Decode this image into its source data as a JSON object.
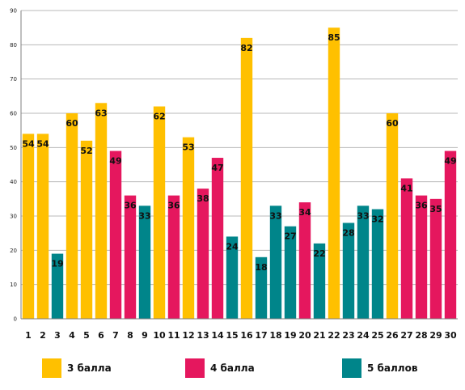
{
  "chart_data": {
    "type": "bar",
    "categories": [
      "1",
      "2",
      "3",
      "4",
      "5",
      "6",
      "7",
      "8",
      "9",
      "10",
      "11",
      "12",
      "13",
      "14",
      "15",
      "16",
      "17",
      "18",
      "19",
      "20",
      "21",
      "22",
      "23",
      "24",
      "25",
      "26",
      "27",
      "28",
      "29",
      "30"
    ],
    "values": [
      54,
      54,
      19,
      60,
      52,
      63,
      49,
      36,
      33,
      62,
      36,
      53,
      38,
      47,
      24,
      82,
      18,
      33,
      27,
      34,
      22,
      85,
      28,
      33,
      32,
      60,
      41,
      36,
      35,
      49
    ],
    "classes": [
      0,
      0,
      2,
      0,
      0,
      0,
      1,
      1,
      2,
      0,
      1,
      0,
      1,
      1,
      2,
      0,
      2,
      2,
      2,
      1,
      2,
      0,
      2,
      2,
      2,
      0,
      1,
      1,
      1,
      1
    ],
    "legend": [
      {
        "name": "3 балла",
        "color": "#FFC000"
      },
      {
        "name": "4 балла",
        "color": "#E5175E"
      },
      {
        "name": "5 баллов",
        "color": "#00858A"
      }
    ],
    "ylim": [
      0,
      90
    ],
    "yticks": [
      0,
      10,
      20,
      30,
      40,
      50,
      60,
      70,
      80,
      90
    ],
    "grid": true,
    "legend_position": "bottom"
  }
}
